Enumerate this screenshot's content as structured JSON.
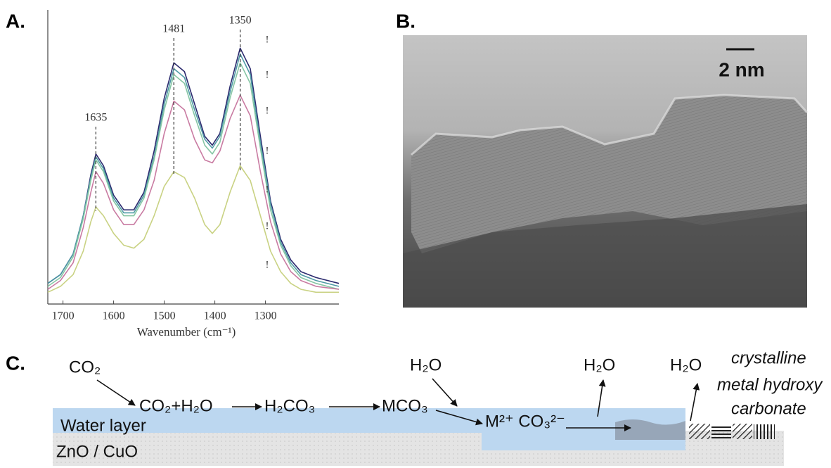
{
  "panel_labels": [
    "A.",
    "B.",
    "C."
  ],
  "chart_data": {
    "type": "line",
    "x": [
      1730,
      1705,
      1680,
      1660,
      1645,
      1635,
      1620,
      1600,
      1580,
      1560,
      1540,
      1520,
      1500,
      1481,
      1460,
      1440,
      1420,
      1405,
      1390,
      1370,
      1350,
      1330,
      1310,
      1290,
      1270,
      1250,
      1230,
      1200,
      1155
    ],
    "series": [
      {
        "color": "#2b2a6e",
        "values": [
          0.07,
          0.1,
          0.17,
          0.3,
          0.44,
          0.51,
          0.47,
          0.37,
          0.32,
          0.32,
          0.38,
          0.52,
          0.7,
          0.82,
          0.79,
          0.68,
          0.57,
          0.54,
          0.58,
          0.74,
          0.87,
          0.8,
          0.57,
          0.35,
          0.22,
          0.15,
          0.11,
          0.09,
          0.07
        ]
      },
      {
        "color": "#4f9aa6",
        "values": [
          0.07,
          0.1,
          0.17,
          0.3,
          0.43,
          0.5,
          0.46,
          0.36,
          0.31,
          0.31,
          0.37,
          0.5,
          0.68,
          0.8,
          0.77,
          0.66,
          0.56,
          0.53,
          0.57,
          0.72,
          0.85,
          0.78,
          0.55,
          0.34,
          0.21,
          0.14,
          0.1,
          0.08,
          0.06
        ]
      },
      {
        "color": "#86c6a4",
        "values": [
          0.06,
          0.09,
          0.16,
          0.29,
          0.42,
          0.49,
          0.45,
          0.35,
          0.3,
          0.3,
          0.36,
          0.49,
          0.66,
          0.78,
          0.75,
          0.64,
          0.54,
          0.51,
          0.55,
          0.7,
          0.82,
          0.75,
          0.53,
          0.32,
          0.2,
          0.13,
          0.09,
          0.07,
          0.05
        ]
      },
      {
        "color": "#c97ba2",
        "values": [
          0.05,
          0.08,
          0.14,
          0.26,
          0.38,
          0.45,
          0.41,
          0.32,
          0.27,
          0.27,
          0.32,
          0.42,
          0.58,
          0.69,
          0.66,
          0.56,
          0.49,
          0.48,
          0.52,
          0.63,
          0.71,
          0.64,
          0.45,
          0.28,
          0.17,
          0.11,
          0.08,
          0.06,
          0.05
        ]
      },
      {
        "color": "#c9d283",
        "values": [
          0.04,
          0.06,
          0.1,
          0.18,
          0.28,
          0.33,
          0.3,
          0.24,
          0.2,
          0.19,
          0.22,
          0.3,
          0.4,
          0.45,
          0.43,
          0.36,
          0.27,
          0.24,
          0.27,
          0.38,
          0.47,
          0.42,
          0.3,
          0.18,
          0.11,
          0.07,
          0.05,
          0.04,
          0.04
        ]
      }
    ],
    "xlim": [
      1730,
      1155
    ],
    "ylim": [
      0,
      1
    ],
    "xticks": [
      1700,
      1600,
      1500,
      1400,
      1300
    ],
    "xlabel": "Wavenumber (cm⁻¹)",
    "peak_labels": [
      1635,
      1481,
      1350
    ],
    "markers": [
      "!",
      "!",
      "!",
      "!",
      "!",
      "!",
      "!"
    ]
  },
  "image": {
    "scale_bar": "2 nm"
  },
  "diagram": {
    "co2": "CO₂",
    "mix": "CO₂+H₂O",
    "acid": "H₂CO₃",
    "carbonate": "MCO₃",
    "water_in": "H₂O",
    "ions": "M²⁺ CO₃²⁻",
    "water_out_1": "H₂O",
    "water_out_2": "H₂O",
    "product": [
      "crystalline",
      "metal hydroxy",
      "carbonate"
    ],
    "water_layer": "Water layer",
    "substrate": "ZnO / CuO"
  }
}
